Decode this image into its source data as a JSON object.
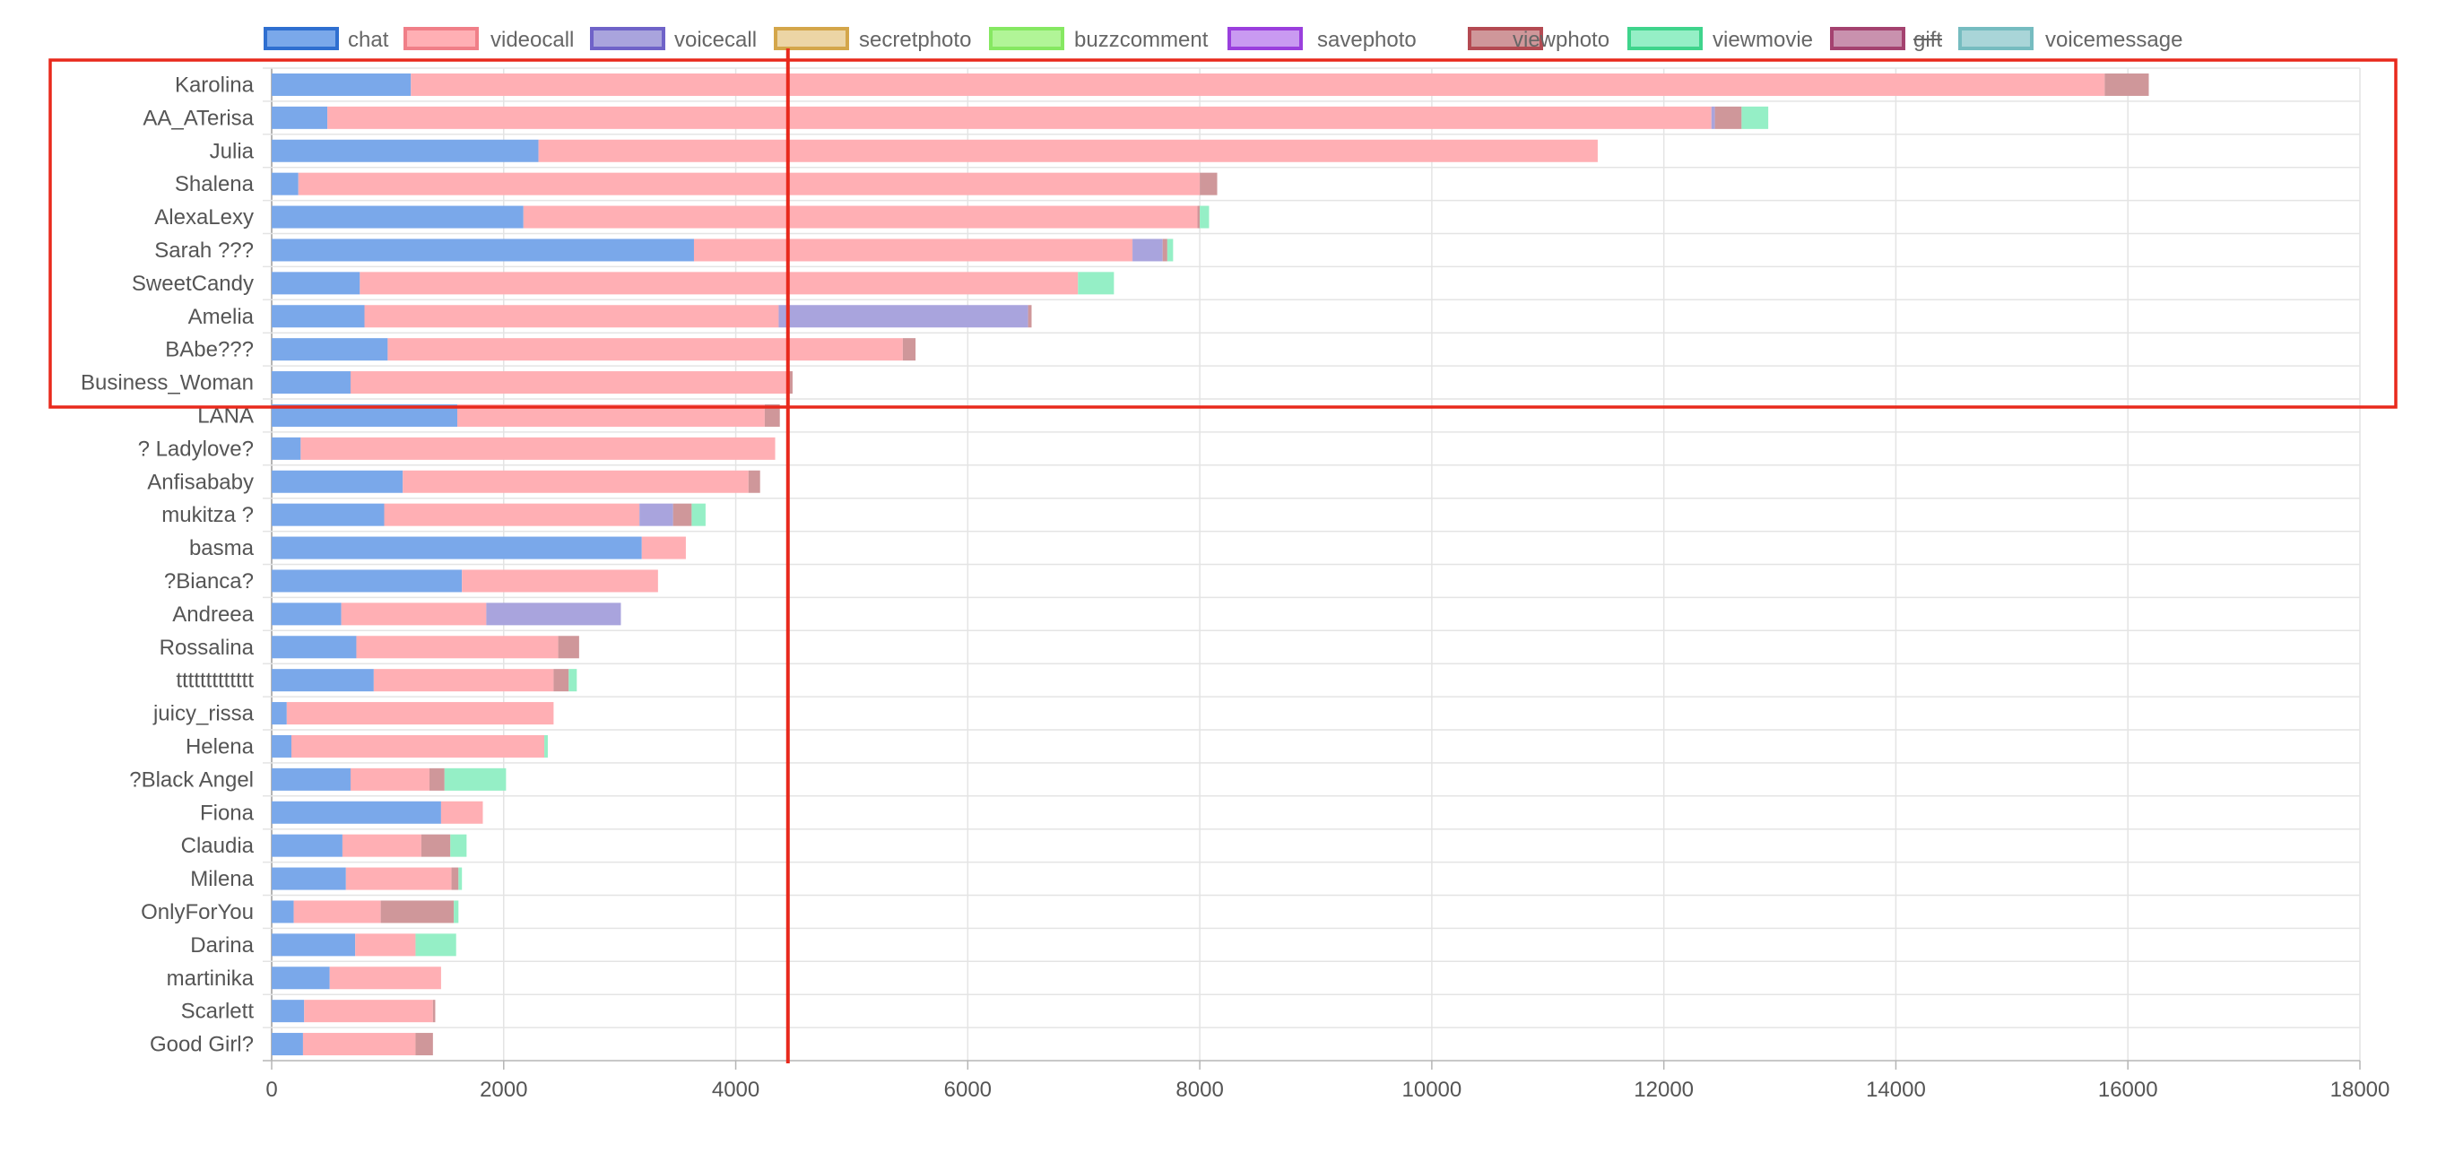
{
  "chart_data": {
    "type": "bar",
    "orientation": "horizontal",
    "stacked": true,
    "legend_position": "top",
    "grid": true,
    "xlim": [
      0,
      18000
    ],
    "x_ticks": [
      0,
      2000,
      4000,
      6000,
      8000,
      10000,
      12000,
      14000,
      16000,
      18000
    ],
    "categories": [
      "Karolina",
      "AA_ATerisa",
      "Julia",
      "Shalena",
      "AlexaLexy",
      "Sarah ???",
      "SweetCandy",
      "Amelia",
      "BAbe???",
      "Business_Woman",
      "LANA",
      "? Ladylove?",
      "Anfisababy",
      "mukitza ?",
      "basma",
      "?Bianca?",
      "Andreea",
      "Rossalina",
      "ttttttttttttt",
      "juicy_rissa",
      "Helena",
      "?Black Angel",
      "Fiona",
      "Claudia",
      "Milena",
      "OnlyForYou",
      "Darina",
      "martinika",
      "Scarlett",
      "Good Girl?"
    ],
    "reference_line_x": 4450,
    "highlight_top_n": 10,
    "series": [
      {
        "name": "chat",
        "color": "#7aa8ea",
        "border": "#2f6fd0",
        "hidden": false,
        "values": [
          1200,
          480,
          2300,
          230,
          2170,
          3640,
          760,
          800,
          1000,
          680,
          1600,
          250,
          1130,
          970,
          3190,
          1640,
          600,
          730,
          880,
          130,
          170,
          680,
          1460,
          610,
          640,
          190,
          720,
          500,
          280,
          270
        ]
      },
      {
        "name": "videocall",
        "color": "#ffafb4",
        "border": "#f07f88",
        "hidden": false,
        "values": [
          14600,
          11930,
          9130,
          7770,
          5810,
          3780,
          6190,
          3570,
          4440,
          3780,
          2650,
          4090,
          2980,
          2200,
          380,
          1690,
          1250,
          1740,
          1550,
          2300,
          2180,
          680,
          360,
          680,
          910,
          750,
          520,
          960,
          1110,
          970
        ]
      },
      {
        "name": "voicecall",
        "color": "#a9a4dd",
        "border": "#6f63c8",
        "hidden": false,
        "values": [
          0,
          30,
          0,
          0,
          0,
          260,
          0,
          2150,
          0,
          0,
          0,
          0,
          0,
          290,
          0,
          0,
          1160,
          0,
          0,
          0,
          0,
          0,
          0,
          0,
          0,
          0,
          0,
          0,
          0,
          0
        ]
      },
      {
        "name": "secretphoto",
        "color": "#ecd5a5",
        "border": "#d4a64a",
        "hidden": false,
        "values": [
          0,
          0,
          0,
          0,
          0,
          0,
          0,
          0,
          0,
          0,
          0,
          0,
          0,
          0,
          0,
          0,
          0,
          0,
          0,
          0,
          0,
          0,
          0,
          0,
          0,
          0,
          0,
          0,
          0,
          0
        ]
      },
      {
        "name": "buzzcomment",
        "color": "#b1f597",
        "border": "#86e862",
        "hidden": false,
        "values": [
          0,
          0,
          0,
          0,
          0,
          0,
          0,
          0,
          0,
          0,
          0,
          0,
          0,
          0,
          0,
          0,
          0,
          0,
          0,
          0,
          0,
          0,
          0,
          0,
          0,
          0,
          0,
          0,
          0,
          0
        ]
      },
      {
        "name": "savephoto",
        "color": "#c99af1",
        "border": "#9a3fdd",
        "hidden": false,
        "values": [
          0,
          0,
          0,
          0,
          0,
          0,
          0,
          0,
          0,
          0,
          0,
          0,
          0,
          0,
          0,
          0,
          0,
          0,
          0,
          0,
          0,
          0,
          0,
          0,
          0,
          0,
          0,
          0,
          0,
          0
        ]
      },
      {
        "name": "viewphoto",
        "color": "#cf979a",
        "border": "#b44a52",
        "hidden": false,
        "values": [
          380,
          230,
          0,
          150,
          20,
          40,
          0,
          30,
          110,
          30,
          130,
          0,
          100,
          160,
          0,
          0,
          0,
          180,
          130,
          0,
          0,
          130,
          0,
          250,
          60,
          630,
          0,
          0,
          20,
          150
        ]
      },
      {
        "name": "viewmovie",
        "color": "#95efc6",
        "border": "#3fd48c",
        "hidden": false,
        "values": [
          0,
          230,
          0,
          0,
          80,
          50,
          310,
          0,
          0,
          0,
          0,
          0,
          0,
          120,
          0,
          0,
          0,
          0,
          70,
          0,
          30,
          530,
          0,
          140,
          30,
          40,
          350,
          0,
          0,
          0
        ]
      },
      {
        "name": "gift",
        "color": "#c991ae",
        "border": "#a4426f",
        "hidden": true,
        "values": [
          0,
          0,
          0,
          0,
          0,
          0,
          0,
          0,
          0,
          0,
          0,
          0,
          0,
          0,
          0,
          0,
          0,
          0,
          0,
          0,
          0,
          0,
          0,
          0,
          0,
          0,
          0,
          0,
          0,
          0
        ]
      },
      {
        "name": "voicemessage",
        "color": "#a9d5d8",
        "border": "#76bcc0",
        "hidden": false,
        "values": [
          0,
          0,
          0,
          0,
          0,
          0,
          0,
          0,
          0,
          0,
          0,
          0,
          0,
          0,
          0,
          0,
          0,
          0,
          0,
          0,
          0,
          0,
          0,
          0,
          0,
          0,
          0,
          0,
          0,
          0
        ]
      }
    ],
    "title": "",
    "xlabel": "",
    "ylabel": ""
  }
}
